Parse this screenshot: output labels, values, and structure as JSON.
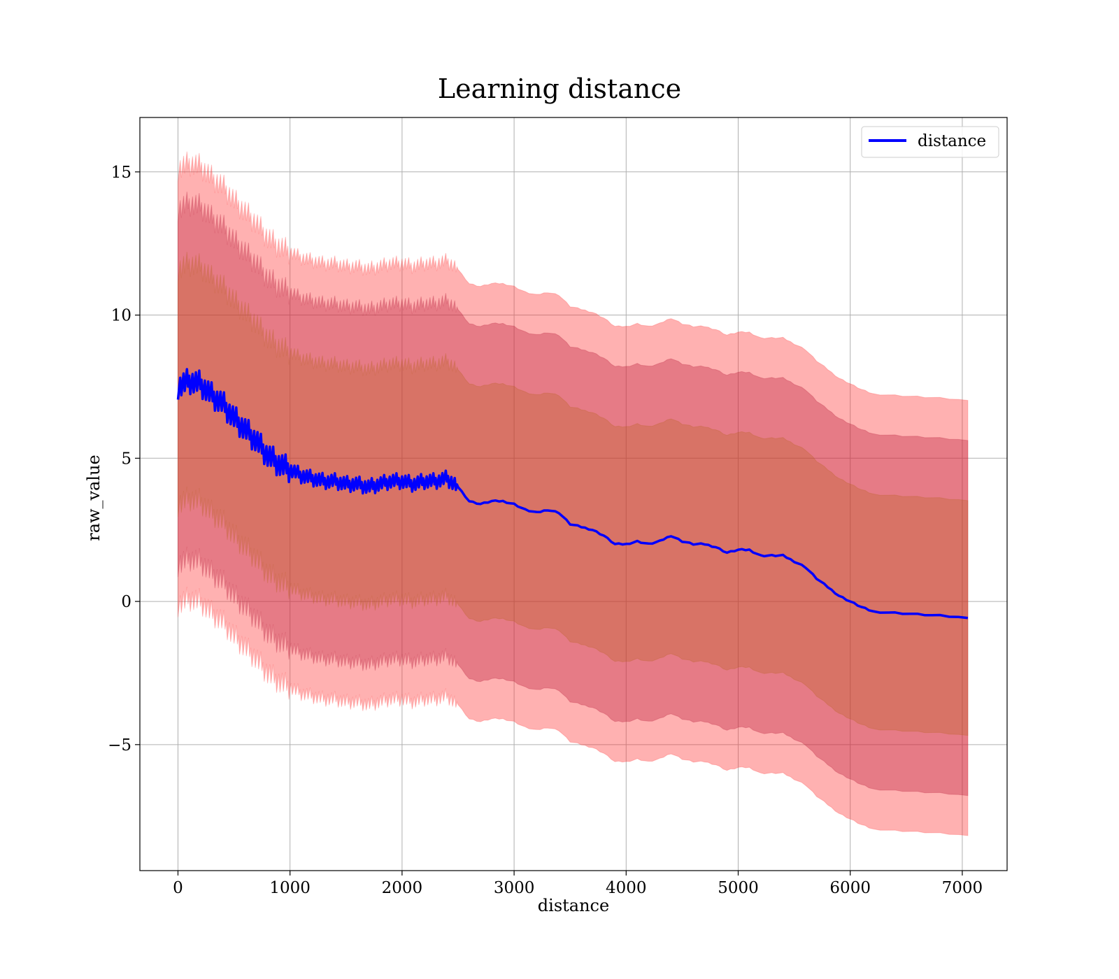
{
  "chart_data": {
    "type": "line",
    "title": "Learning distance",
    "xlabel": "distance",
    "ylabel": "raw_value",
    "xlim": [
      -340,
      7400
    ],
    "ylim": [
      -9.4,
      16.9
    ],
    "x_ticks": [
      0,
      1000,
      2000,
      3000,
      4000,
      5000,
      6000,
      7000
    ],
    "x_tick_labels": [
      "0",
      "1000",
      "2000",
      "3000",
      "4000",
      "5000",
      "6000",
      "7000"
    ],
    "y_ticks": [
      -5,
      0,
      5,
      10,
      15
    ],
    "y_tick_labels": [
      "−5",
      "0",
      "5",
      "10",
      "15"
    ],
    "grid": true,
    "legend_position": "top-right",
    "series": [
      {
        "name": "distance",
        "color": "#0000ff",
        "x": [
          0,
          100,
          200,
          300,
          400,
          500,
          600,
          700,
          800,
          900,
          1000,
          1100,
          1200,
          1300,
          1400,
          1500,
          1600,
          1700,
          1800,
          1900,
          2000,
          2100,
          2200,
          2300,
          2400,
          2500,
          2600,
          2700,
          2800,
          2900,
          3000,
          3100,
          3200,
          3300,
          3400,
          3500,
          3600,
          3700,
          3800,
          3900,
          4000,
          4100,
          4200,
          4300,
          4400,
          4500,
          4600,
          4700,
          4800,
          4900,
          5000,
          5100,
          5200,
          5300,
          5400,
          5500,
          5600,
          5700,
          5800,
          5900,
          6000,
          6100,
          6200,
          6400,
          6600,
          6800,
          7050
        ],
        "y": [
          7.5,
          7.7,
          7.6,
          7.2,
          6.9,
          6.4,
          6.0,
          5.6,
          5.1,
          4.8,
          4.6,
          4.4,
          4.3,
          4.2,
          4.2,
          4.1,
          4.1,
          4.0,
          4.1,
          4.2,
          4.2,
          4.1,
          4.2,
          4.2,
          4.3,
          4.0,
          3.5,
          3.4,
          3.5,
          3.5,
          3.4,
          3.2,
          3.1,
          3.2,
          3.1,
          2.7,
          2.6,
          2.5,
          2.3,
          2.0,
          2.0,
          2.1,
          2.0,
          2.1,
          2.3,
          2.1,
          2.0,
          2.0,
          1.9,
          1.7,
          1.8,
          1.8,
          1.6,
          1.6,
          1.6,
          1.4,
          1.2,
          0.8,
          0.5,
          0.2,
          0.0,
          -0.2,
          -0.35,
          -0.4,
          -0.45,
          -0.5,
          -0.58
        ]
      }
    ],
    "bands": [
      {
        "half_width": 6.2,
        "fill": "#8b0a3a",
        "opacity": 0.35
      },
      {
        "half_width": 4.1,
        "fill": "#8a7a10",
        "opacity": 0.3
      },
      {
        "half_width": 7.6,
        "fill": "#ff3333",
        "opacity": 0.38
      }
    ]
  }
}
